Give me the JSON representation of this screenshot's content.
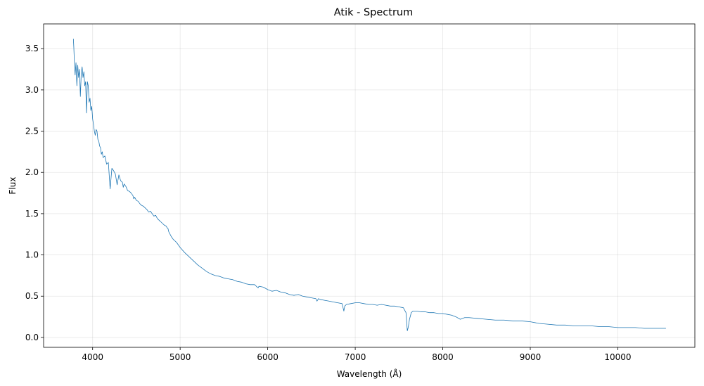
{
  "chart_data": {
    "type": "line",
    "title": "Atik - Spectrum",
    "xlabel": "Wavelength (Å)",
    "ylabel": "Flux",
    "xlim": [
      3440,
      10880
    ],
    "ylim": [
      -0.12,
      3.8
    ],
    "xticks": [
      4000,
      5000,
      6000,
      7000,
      8000,
      9000,
      10000
    ],
    "yticks": [
      0.0,
      0.5,
      1.0,
      1.5,
      2.0,
      2.5,
      3.0,
      3.5
    ],
    "xtick_labels": [
      "4000",
      "5000",
      "6000",
      "7000",
      "8000",
      "9000",
      "10000"
    ],
    "ytick_labels": [
      "0.0",
      "0.5",
      "1.0",
      "1.5",
      "2.0",
      "2.5",
      "3.0",
      "3.5"
    ],
    "grid": true,
    "line_color": "#1f77b4",
    "series": [
      {
        "x": [
          3780,
          3785,
          3790,
          3800,
          3810,
          3820,
          3830,
          3840,
          3850,
          3860,
          3870,
          3880,
          3890,
          3900,
          3910,
          3920,
          3930,
          3940,
          3950,
          3960,
          3970,
          3980,
          3990,
          4000,
          4010,
          4020,
          4030,
          4040,
          4050,
          4060,
          4070,
          4080,
          4090,
          4100,
          4110,
          4120,
          4140,
          4160,
          4180,
          4200,
          4220,
          4240,
          4260,
          4280,
          4300,
          4320,
          4340,
          4350,
          4360,
          4380,
          4400,
          4420,
          4440,
          4460,
          4470,
          4480,
          4500,
          4520,
          4540,
          4560,
          4580,
          4600,
          4620,
          4640,
          4660,
          4680,
          4700,
          4720,
          4740,
          4760,
          4780,
          4800,
          4820,
          4840,
          4850,
          4861,
          4870,
          4880,
          4900,
          4920,
          4940,
          4960,
          4980,
          5000,
          5050,
          5100,
          5150,
          5200,
          5250,
          5300,
          5350,
          5400,
          5450,
          5500,
          5550,
          5600,
          5650,
          5700,
          5750,
          5800,
          5850,
          5890,
          5900,
          5950,
          6000,
          6050,
          6100,
          6150,
          6200,
          6250,
          6300,
          6350,
          6400,
          6450,
          6500,
          6550,
          6563,
          6580,
          6600,
          6650,
          6700,
          6750,
          6800,
          6850,
          6870,
          6880,
          6900,
          6950,
          7000,
          7050,
          7100,
          7150,
          7200,
          7250,
          7300,
          7350,
          7400,
          7450,
          7500,
          7550,
          7580,
          7595,
          7605,
          7620,
          7640,
          7660,
          7700,
          7750,
          7800,
          7850,
          7900,
          7950,
          8000,
          8050,
          8100,
          8150,
          8200,
          8250,
          8300,
          8400,
          8500,
          8600,
          8700,
          8800,
          8900,
          9000,
          9100,
          9200,
          9300,
          9400,
          9500,
          9600,
          9700,
          9800,
          9900,
          10000,
          10100,
          10200,
          10300,
          10400,
          10550
        ],
        "y": [
          3.62,
          3.52,
          3.38,
          3.18,
          3.33,
          3.05,
          3.3,
          3.15,
          3.25,
          2.92,
          3.2,
          3.28,
          3.15,
          3.22,
          3.05,
          3.1,
          2.72,
          3.1,
          3.05,
          2.85,
          2.9,
          2.75,
          2.8,
          2.65,
          2.58,
          2.5,
          2.45,
          2.52,
          2.5,
          2.4,
          2.38,
          2.32,
          2.3,
          2.22,
          2.25,
          2.18,
          2.2,
          2.1,
          2.12,
          1.8,
          2.05,
          2.02,
          1.98,
          1.85,
          1.97,
          1.9,
          1.88,
          1.82,
          1.86,
          1.83,
          1.78,
          1.77,
          1.75,
          1.72,
          1.68,
          1.7,
          1.66,
          1.65,
          1.62,
          1.6,
          1.59,
          1.57,
          1.55,
          1.52,
          1.53,
          1.5,
          1.47,
          1.48,
          1.44,
          1.42,
          1.4,
          1.38,
          1.36,
          1.35,
          1.33,
          1.32,
          1.28,
          1.26,
          1.22,
          1.19,
          1.17,
          1.15,
          1.12,
          1.09,
          1.03,
          0.98,
          0.93,
          0.88,
          0.84,
          0.8,
          0.77,
          0.75,
          0.74,
          0.72,
          0.71,
          0.7,
          0.68,
          0.67,
          0.65,
          0.64,
          0.64,
          0.6,
          0.62,
          0.61,
          0.58,
          0.56,
          0.57,
          0.55,
          0.54,
          0.52,
          0.51,
          0.52,
          0.5,
          0.49,
          0.48,
          0.47,
          0.44,
          0.47,
          0.46,
          0.45,
          0.44,
          0.43,
          0.42,
          0.41,
          0.32,
          0.38,
          0.4,
          0.41,
          0.42,
          0.42,
          0.41,
          0.4,
          0.4,
          0.39,
          0.4,
          0.39,
          0.38,
          0.38,
          0.37,
          0.36,
          0.3,
          0.08,
          0.12,
          0.22,
          0.3,
          0.32,
          0.32,
          0.31,
          0.31,
          0.3,
          0.3,
          0.29,
          0.29,
          0.28,
          0.27,
          0.25,
          0.22,
          0.24,
          0.24,
          0.23,
          0.22,
          0.21,
          0.21,
          0.2,
          0.2,
          0.19,
          0.17,
          0.16,
          0.15,
          0.15,
          0.14,
          0.14,
          0.14,
          0.13,
          0.13,
          0.12,
          0.12,
          0.12,
          0.11,
          0.11,
          0.11
        ]
      }
    ]
  }
}
